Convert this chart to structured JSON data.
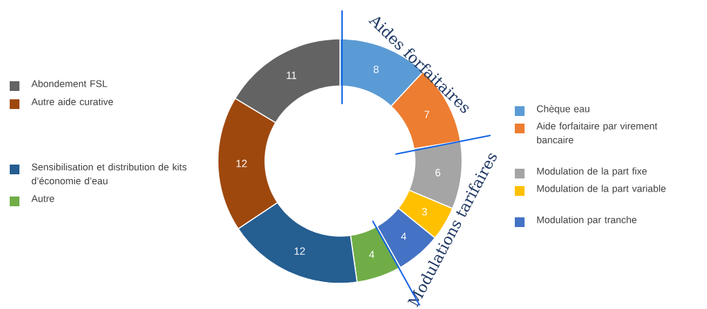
{
  "chart_data": {
    "type": "donut",
    "categories": [
      "Chèque eau",
      "Aide forfaitaire par virement bancaire",
      "Modulation de la part fixe",
      "Modulation de la part variable",
      "Modulation par tranche",
      "Autre",
      "Sensibilisation et distribution de kits d’économie d’eau",
      "Autre aide curative",
      "Abondement FSL"
    ],
    "values": [
      8,
      7,
      6,
      3,
      4,
      4,
      12,
      12,
      11
    ],
    "colors": [
      "#5b9bd5",
      "#ed7d31",
      "#a5a5a5",
      "#ffc000",
      "#4472c4",
      "#70ad47",
      "#255e91",
      "#9e480e",
      "#636363"
    ],
    "data_labels": true,
    "legend": "right",
    "annotations": [
      "Aides forfaitaires",
      "Modulations tarifaires"
    ]
  }
}
